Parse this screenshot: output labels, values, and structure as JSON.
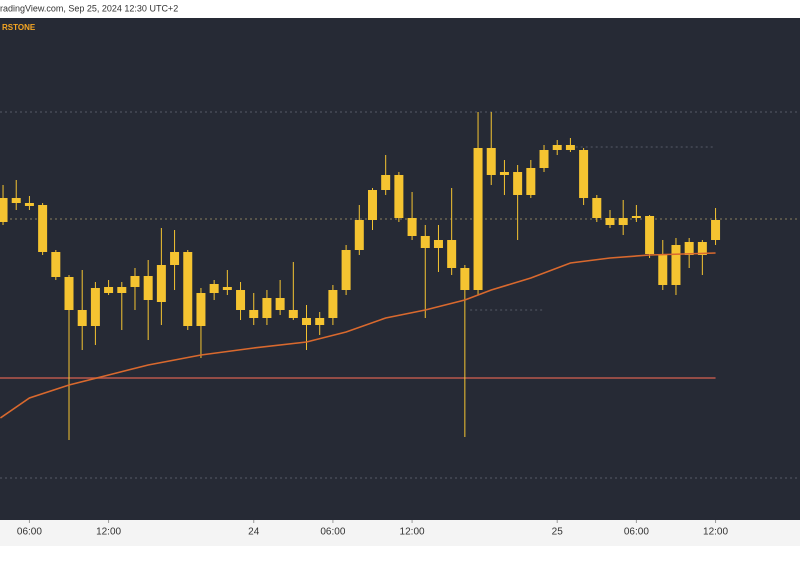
{
  "header": {
    "source": "radingView.com, Sep 25, 2024 12:30 UTC+2"
  },
  "chart_data": {
    "type": "candlestick",
    "symbol": "RSTONE",
    "x": [
      0,
      1,
      2,
      3,
      4,
      5,
      6,
      7,
      8,
      9,
      10,
      11,
      12,
      13,
      14,
      15,
      16,
      17,
      18,
      19,
      20,
      21,
      22,
      23,
      24,
      25,
      26,
      27,
      28,
      29,
      30,
      31,
      32,
      33,
      34,
      35,
      36,
      37,
      38,
      39,
      40,
      41,
      42,
      43,
      44,
      45,
      46,
      47,
      48,
      49,
      50,
      51,
      52,
      53,
      54
    ],
    "series": [
      {
        "type": "candlestick",
        "color": "#f5c431",
        "open": [
          298,
          322,
          317,
          315,
          268,
          243,
          210,
          194,
          227,
          227,
          233,
          244,
          218,
          255,
          268,
          194,
          227,
          233,
          230,
          210,
          202,
          222,
          210,
          202,
          195,
          202,
          230,
          270,
          300,
          330,
          345,
          302,
          284,
          272,
          280,
          252,
          230,
          372,
          345,
          348,
          325,
          352,
          370,
          375,
          370,
          322,
          302,
          295,
          302,
          304,
          266,
          235,
          265,
          265,
          280
        ],
        "high": [
          335,
          340,
          324,
          317,
          270,
          245,
          250,
          238,
          240,
          238,
          252,
          260,
          292,
          290,
          270,
          232,
          240,
          250,
          238,
          227,
          230,
          240,
          258,
          215,
          208,
          235,
          275,
          315,
          332,
          365,
          348,
          328,
          295,
          295,
          332,
          255,
          408,
          408,
          360,
          355,
          360,
          375,
          380,
          382,
          372,
          325,
          310,
          320,
          315,
          305,
          280,
          282,
          282,
          280,
          312
        ],
        "low": [
          295,
          310,
          310,
          265,
          240,
          80,
          170,
          175,
          225,
          190,
          210,
          180,
          195,
          230,
          190,
          162,
          220,
          225,
          200,
          195,
          195,
          205,
          200,
          170,
          185,
          195,
          225,
          265,
          290,
          325,
          298,
          280,
          202,
          248,
          245,
          83,
          225,
          335,
          325,
          280,
          322,
          348,
          365,
          368,
          315,
          298,
          292,
          285,
          298,
          262,
          230,
          225,
          252,
          245,
          275
        ],
        "close": [
          322,
          317,
          314,
          268,
          243,
          210,
          194,
          232,
          233,
          233,
          244,
          220,
          255,
          268,
          194,
          227,
          236,
          230,
          210,
          202,
          222,
          210,
          202,
          195,
          202,
          230,
          270,
          300,
          330,
          345,
          302,
          284,
          272,
          280,
          252,
          230,
          372,
          345,
          348,
          325,
          352,
          370,
          375,
          370,
          322,
          302,
          295,
          302,
          304,
          266,
          235,
          275,
          278,
          278,
          300
        ]
      },
      {
        "type": "line",
        "color": "#d9692e",
        "x": [
          -0.2,
          2,
          5,
          8,
          11,
          15,
          19,
          23,
          26,
          29,
          32,
          35,
          37,
          40,
          43,
          46,
          49,
          54
        ],
        "values": [
          102,
          122,
          135,
          145,
          155,
          165,
          172,
          178,
          188,
          202,
          210,
          220,
          230,
          242,
          257,
          262,
          265,
          267
        ]
      }
    ],
    "hlines": [
      {
        "value": 408,
        "color": "#555a66",
        "dash": true,
        "from": -0.23,
        "to": 60.4
      },
      {
        "value": 301,
        "color": "#8a8060",
        "dash": true,
        "from": -0.23,
        "to": 60.4
      },
      {
        "value": 42,
        "color": "#555a66",
        "dash": true,
        "from": -0.23,
        "to": 60.4
      },
      {
        "value": 373,
        "color": "#555a66",
        "dash": true,
        "from": 43.4,
        "to": 54
      },
      {
        "value": 210,
        "color": "#555a66",
        "dash": true,
        "from": 35.4,
        "to": 41
      },
      {
        "value": 142,
        "color": "#b8584c",
        "dash": false,
        "from": -0.23,
        "to": 54
      }
    ],
    "xlim": [
      -0.23,
      60.4
    ],
    "ylim": [
      0,
      502
    ],
    "xticks": [
      {
        "value": 2,
        "label": "06:00"
      },
      {
        "value": 8,
        "label": "12:00"
      },
      {
        "value": 19,
        "label": "24"
      },
      {
        "value": 25,
        "label": "06:00"
      },
      {
        "value": 31,
        "label": "12:00"
      },
      {
        "value": 42,
        "label": "25"
      },
      {
        "value": 48,
        "label": "06:00"
      },
      {
        "value": 54,
        "label": "12:00"
      }
    ],
    "background": "#262a35"
  }
}
